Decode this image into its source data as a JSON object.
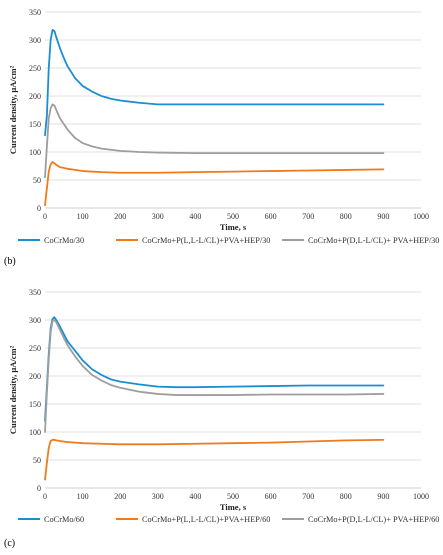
{
  "figure": {
    "panels": [
      {
        "label": "(b)"
      },
      {
        "label": "(c)"
      }
    ]
  },
  "chart_data": [
    {
      "type": "line",
      "xlabel": "Time, s",
      "ylabel": "Current density, µA/cm²",
      "xlim": [
        0,
        1000
      ],
      "ylim": [
        0,
        350
      ],
      "xticks": [
        0,
        100,
        200,
        300,
        400,
        500,
        600,
        700,
        800,
        900,
        1000
      ],
      "yticks": [
        0,
        50,
        100,
        150,
        200,
        250,
        300,
        350
      ],
      "grid": true,
      "legend_position": "bottom",
      "series": [
        {
          "name": "CoCrMo/30",
          "color": "#1a8fd0",
          "x": [
            0,
            5,
            10,
            15,
            20,
            25,
            30,
            40,
            50,
            60,
            80,
            100,
            125,
            150,
            175,
            200,
            250,
            300,
            350,
            400,
            500,
            600,
            700,
            800,
            900
          ],
          "y": [
            130,
            165,
            250,
            300,
            318,
            316,
            305,
            285,
            268,
            253,
            232,
            218,
            208,
            200,
            195,
            192,
            188,
            185,
            185,
            185,
            185,
            185,
            185,
            185,
            185
          ]
        },
        {
          "name": "CoCrMo+P(L,L-L/CL)+PVA+HEP/30",
          "color": "#f07a1c",
          "x": [
            0,
            5,
            10,
            15,
            20,
            25,
            30,
            40,
            60,
            80,
            100,
            150,
            200,
            250,
            300,
            400,
            500,
            600,
            700,
            800,
            900
          ],
          "y": [
            5,
            35,
            65,
            78,
            82,
            80,
            77,
            73,
            70,
            68,
            66,
            64,
            63,
            63,
            63,
            64,
            65,
            66,
            67,
            68,
            69
          ]
        },
        {
          "name": "CoCrMo+P(D,L-L/CL)+ PVA+HEP/30",
          "color": "#9e9e9e",
          "x": [
            0,
            5,
            10,
            15,
            20,
            25,
            30,
            40,
            60,
            80,
            100,
            125,
            150,
            200,
            250,
            300,
            400,
            500,
            600,
            700,
            800,
            900
          ],
          "y": [
            55,
            110,
            160,
            178,
            185,
            183,
            175,
            160,
            140,
            125,
            116,
            110,
            106,
            102,
            100,
            99,
            98,
            98,
            98,
            98,
            98,
            98
          ]
        }
      ]
    },
    {
      "type": "line",
      "xlabel": "Time, s",
      "ylabel": "Current density, µA/cm²",
      "xlim": [
        0,
        1000
      ],
      "ylim": [
        0,
        350
      ],
      "xticks": [
        0,
        100,
        200,
        300,
        400,
        500,
        600,
        700,
        800,
        900,
        1000
      ],
      "yticks": [
        0,
        50,
        100,
        150,
        200,
        250,
        300,
        350
      ],
      "grid": true,
      "legend_position": "bottom",
      "series": [
        {
          "name": "CoCrMo/60",
          "color": "#1a8fd0",
          "x": [
            0,
            5,
            10,
            15,
            20,
            25,
            30,
            40,
            50,
            60,
            80,
            100,
            125,
            150,
            175,
            200,
            250,
            300,
            350,
            400,
            500,
            600,
            700,
            800,
            900
          ],
          "y": [
            120,
            180,
            240,
            285,
            302,
            305,
            300,
            288,
            275,
            262,
            245,
            228,
            212,
            202,
            194,
            190,
            185,
            181,
            180,
            180,
            181,
            182,
            183,
            183,
            183
          ]
        },
        {
          "name": "CoCrMo+P(L,L-L/CL)+PVA+HEP/60",
          "color": "#f07a1c",
          "x": [
            0,
            5,
            10,
            15,
            20,
            25,
            30,
            40,
            60,
            80,
            100,
            150,
            200,
            250,
            300,
            400,
            500,
            600,
            700,
            800,
            900
          ],
          "y": [
            15,
            45,
            72,
            84,
            86,
            86,
            85,
            84,
            82,
            81,
            80,
            79,
            78,
            78,
            78,
            79,
            80,
            81,
            83,
            85,
            86
          ]
        },
        {
          "name": "CoCrMo+P(D,L-L/CL)+ PVA+HEP/60",
          "color": "#9e9e9e",
          "x": [
            0,
            5,
            10,
            15,
            20,
            25,
            30,
            40,
            50,
            60,
            80,
            100,
            125,
            150,
            175,
            200,
            250,
            300,
            350,
            400,
            500,
            600,
            700,
            800,
            900
          ],
          "y": [
            100,
            170,
            230,
            278,
            298,
            300,
            296,
            282,
            268,
            255,
            235,
            218,
            202,
            192,
            184,
            179,
            172,
            168,
            166,
            166,
            166,
            167,
            167,
            167,
            168
          ]
        }
      ]
    }
  ]
}
